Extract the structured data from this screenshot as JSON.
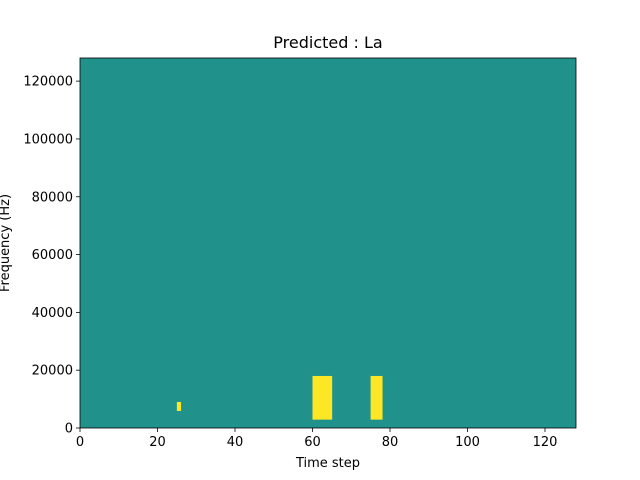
{
  "chart_data": {
    "type": "heatmap",
    "title": "Predicted : La",
    "xlabel": "Time step",
    "ylabel": "Frequency (Hz)",
    "xlim": [
      0,
      128
    ],
    "ylim": [
      0,
      128000
    ],
    "x_ticks": [
      0,
      20,
      40,
      60,
      80,
      100,
      120
    ],
    "x_tick_labels": [
      "0",
      "20",
      "40",
      "60",
      "80",
      "100",
      "120"
    ],
    "y_ticks": [
      0,
      20000,
      40000,
      60000,
      80000,
      100000,
      120000
    ],
    "y_tick_labels": [
      "0",
      "20000",
      "40000",
      "60000",
      "80000",
      "100000",
      "120000"
    ],
    "grid": false,
    "colormap": "viridis",
    "colors": {
      "low": "#440154",
      "mid": "#21918c",
      "high": "#fde725"
    },
    "value_levels": [
      -1,
      0,
      1
    ],
    "background_value": 0,
    "cell_height_hz": 3000,
    "cell_width_steps": 1,
    "cells": [
      [
        0,
        0,
        0,
        0,
        0,
        0,
        0,
        0,
        0,
        0,
        0,
        0,
        0,
        0,
        0,
        0,
        0,
        0,
        0,
        0,
        0,
        0,
        0,
        0,
        0,
        0,
        0,
        0,
        0,
        0,
        0,
        0,
        0,
        0,
        0,
        0,
        0,
        0,
        0,
        0,
        0,
        0,
        0,
        0,
        0,
        0,
        0,
        0,
        0,
        0,
        0,
        0,
        0,
        0,
        0,
        0,
        0,
        0,
        0,
        0,
        0,
        0,
        0,
        0,
        0,
        0,
        0,
        0,
        0,
        0,
        0,
        0,
        0,
        0,
        0,
        0,
        0,
        0,
        0,
        0,
        0,
        0,
        0,
        0,
        0,
        0,
        0,
        0,
        0,
        0,
        0,
        0,
        0,
        0,
        0,
        0,
        0,
        0,
        0,
        0,
        0,
        0,
        0,
        0,
        0,
        0,
        0,
        0,
        0,
        0,
        0,
        0,
        0,
        0,
        0,
        0,
        0,
        0,
        0,
        0,
        0,
        0,
        0,
        0,
        0,
        0,
        0,
        0
      ],
      [
        0,
        0,
        0,
        0,
        0,
        0,
        0,
        0,
        0,
        0,
        0,
        0,
        0,
        0,
        0,
        0,
        0,
        0,
        0,
        0,
        0,
        0,
        0,
        0,
        0,
        0,
        0,
        0,
        0,
        0,
        0,
        0,
        0,
        0,
        0,
        0,
        0,
        0,
        0,
        0,
        0,
        0,
        0,
        0,
        0,
        0,
        0,
        0,
        0,
        0,
        0,
        0,
        0,
        0,
        0,
        0,
        0,
        0,
        0,
        0,
        1,
        1,
        1,
        1,
        1,
        0,
        0,
        0,
        0,
        0,
        0,
        0,
        0,
        0,
        0,
        1,
        1,
        1,
        0,
        0,
        0,
        0,
        0,
        0,
        0,
        0,
        0,
        0,
        0,
        0,
        0,
        0,
        0,
        0,
        0,
        0,
        0,
        0,
        0,
        0,
        0,
        0,
        0,
        0,
        0,
        0,
        0,
        0,
        0,
        0,
        0,
        0,
        0,
        0,
        0,
        0,
        0,
        0,
        0,
        0,
        0,
        0,
        0,
        0,
        0,
        0,
        0,
        0
      ],
      [
        0,
        0,
        0,
        0,
        0,
        0,
        0,
        0,
        0,
        0,
        0,
        0,
        0,
        0,
        0,
        0,
        0,
        0,
        0,
        0,
        0,
        0,
        0,
        0,
        0,
        1,
        0,
        0,
        0,
        0,
        0,
        0,
        0,
        0,
        0,
        0,
        0,
        0,
        0,
        0,
        0,
        0,
        0,
        0,
        0,
        0,
        0,
        0,
        0,
        0,
        0,
        0,
        0,
        0,
        0,
        0,
        0,
        0,
        0,
        0,
        1,
        1,
        1,
        1,
        1,
        0,
        0,
        0,
        0,
        0,
        0,
        0,
        0,
        0,
        0,
        1,
        1,
        1,
        0,
        0,
        0,
        0,
        0,
        0,
        0,
        0,
        0,
        0,
        0,
        0,
        0,
        0,
        0,
        0,
        0,
        0,
        0,
        0,
        0,
        0,
        0,
        0,
        0,
        0,
        0,
        0,
        0,
        0,
        0,
        0,
        0,
        0,
        0,
        0,
        0,
        0,
        0,
        0,
        0,
        0,
        0,
        0,
        0,
        0,
        0,
        0,
        0,
        0
      ],
      [
        0,
        0,
        0,
        0,
        0,
        0,
        0,
        0,
        0,
        0,
        0,
        0,
        0,
        0,
        0,
        0,
        0,
        0,
        0,
        0,
        0,
        0,
        0,
        0,
        0,
        0,
        0,
        0,
        0,
        0,
        0,
        0,
        0,
        0,
        0,
        0,
        0,
        0,
        0,
        0,
        0,
        0,
        0,
        0,
        0,
        0,
        0,
        0,
        0,
        0,
        0,
        0,
        0,
        0,
        0,
        0,
        0,
        0,
        0,
        0,
        1,
        1,
        1,
        1,
        1,
        0,
        0,
        0,
        0,
        0,
        0,
        0,
        0,
        0,
        0,
        1,
        1,
        1,
        0,
        0,
        0,
        0,
        0,
        0,
        0,
        0,
        0,
        0,
        0,
        0,
        0,
        0,
        0,
        0,
        0,
        0,
        0,
        0,
        0,
        0,
        0,
        0,
        0,
        0,
        0,
        0,
        0,
        0,
        0,
        0,
        0,
        0,
        0,
        0,
        0,
        0,
        0,
        0,
        0,
        0,
        0,
        0,
        0,
        0,
        0,
        0,
        0,
        0
      ],
      [
        0,
        0,
        0,
        0,
        0,
        0,
        0,
        0,
        0,
        0,
        0,
        0,
        0,
        0,
        0,
        0,
        0,
        0,
        0,
        0,
        0,
        0,
        0,
        0,
        0,
        0,
        0,
        0,
        0,
        0,
        0,
        0,
        0,
        0,
        0,
        0,
        0,
        0,
        0,
        0,
        0,
        0,
        0,
        0,
        0,
        0,
        0,
        0,
        0,
        0,
        0,
        0,
        0,
        0,
        0,
        0,
        0,
        0,
        0,
        0,
        1,
        1,
        1,
        1,
        1,
        0,
        0,
        0,
        0,
        0,
        0,
        0,
        0,
        0,
        0,
        1,
        1,
        1,
        0,
        0,
        0,
        0,
        0,
        0,
        0,
        0,
        0,
        0,
        0,
        0,
        0,
        0,
        0,
        0,
        0,
        0,
        0,
        0,
        0,
        0,
        0,
        0,
        0,
        0,
        0,
        0,
        0,
        0,
        0,
        0,
        0,
        0,
        0,
        0,
        0,
        0,
        0,
        0,
        0,
        0,
        0,
        0,
        0,
        0,
        0,
        0,
        0,
        0
      ],
      [
        0,
        0,
        0,
        0,
        0,
        0,
        0,
        0,
        0,
        0,
        0,
        0,
        0,
        0,
        0,
        0,
        0,
        0,
        0,
        0,
        0,
        0,
        0,
        0,
        0,
        0,
        0,
        0,
        0,
        0,
        0,
        0,
        0,
        0,
        0,
        0,
        0,
        0,
        0,
        0,
        0,
        0,
        0,
        0,
        0,
        0,
        0,
        0,
        0,
        0,
        0,
        0,
        0,
        0,
        0,
        0,
        0,
        0,
        0,
        0,
        1,
        1,
        1,
        1,
        1,
        0,
        0,
        0,
        0,
        0,
        0,
        0,
        0,
        0,
        0,
        1,
        1,
        1,
        0,
        0,
        0,
        0,
        0,
        0,
        0,
        0,
        0,
        0,
        0,
        0,
        0,
        0,
        0,
        0,
        0,
        0,
        0,
        0,
        0,
        0,
        0,
        0,
        0,
        0,
        0,
        0,
        0,
        0,
        0,
        0,
        0,
        0,
        0,
        0,
        0,
        0,
        0,
        0,
        0,
        0,
        0,
        0,
        0,
        0,
        0,
        0,
        0,
        0
      ]
    ]
  }
}
